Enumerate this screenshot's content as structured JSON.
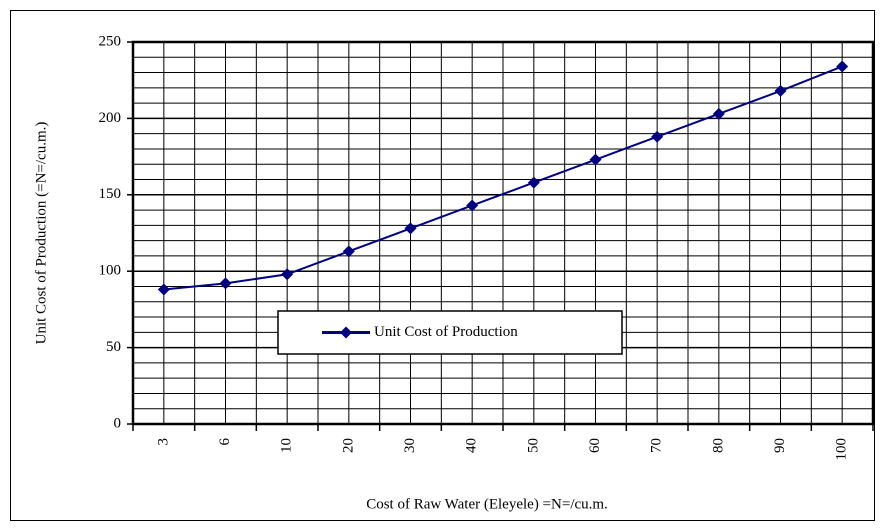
{
  "chart_data": {
    "type": "line",
    "x_label": "Cost of Raw Water (Eleyele) =N=/cu.m.",
    "y_label": "Unit Cost of Production (=N=/cu.m.)",
    "categories": [
      "3",
      "6",
      "10",
      "20",
      "30",
      "40",
      "50",
      "60",
      "70",
      "80",
      "90",
      "100"
    ],
    "series": [
      {
        "name": "Unit Cost of Production",
        "color": "#000080",
        "values": [
          88,
          92,
          98,
          113,
          128,
          143,
          158,
          173,
          188,
          203,
          218,
          234
        ]
      }
    ],
    "ylim": [
      0,
      250
    ],
    "yticks": [
      0,
      50,
      100,
      150,
      200,
      250
    ],
    "minor_yticks": [
      10,
      20,
      30,
      40,
      60,
      70,
      80,
      90,
      110,
      120,
      130,
      140,
      160,
      170,
      180,
      190,
      210,
      220,
      230,
      240
    ],
    "grid": true,
    "legend": "center"
  }
}
